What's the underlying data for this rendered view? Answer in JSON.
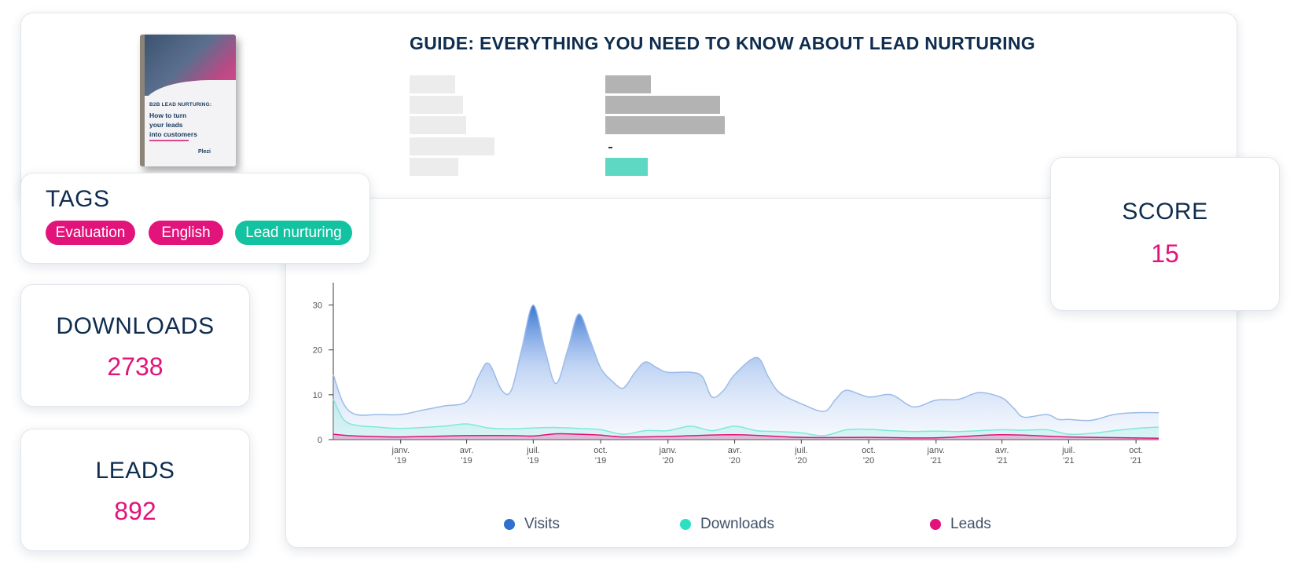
{
  "guide": {
    "title": "GUIDE: EVERYTHING YOU NEED TO KNOW ABOUT LEAD NURTURING",
    "cover": {
      "subtitle": "B2B LEAD NURTURING:",
      "title": "How to turn\nyour leads\ninto customers",
      "logo": "Plezi"
    }
  },
  "tags": {
    "title": "TAGS",
    "items": [
      {
        "label": "Evaluation",
        "color": "#e2137a"
      },
      {
        "label": "English",
        "color": "#e2137a"
      },
      {
        "label": "Lead nurturing",
        "color": "#12c2a0"
      }
    ]
  },
  "downloads": {
    "title": "DOWNLOADS",
    "value": "2738"
  },
  "leads": {
    "title": "LEADS",
    "value": "892"
  },
  "score": {
    "title": "SCORE",
    "value": "15"
  },
  "colors": {
    "accent": "#e2137a",
    "teal": "#12c2a0",
    "navy": "#0f2d4f",
    "visits": "#2f6fd0"
  },
  "chart_data": {
    "type": "area",
    "ylim": [
      0,
      35
    ],
    "y_ticks": [
      0,
      10,
      20,
      30
    ],
    "x_ticks": [
      {
        "line1": "janv.",
        "line2": "'19"
      },
      {
        "line1": "avr.",
        "line2": "'19"
      },
      {
        "line1": "juil.",
        "line2": "'19"
      },
      {
        "line1": "oct.",
        "line2": "'19"
      },
      {
        "line1": "janv.",
        "line2": "'20"
      },
      {
        "line1": "avr.",
        "line2": "'20"
      },
      {
        "line1": "juil.",
        "line2": "'20"
      },
      {
        "line1": "oct.",
        "line2": "'20"
      },
      {
        "line1": "janv.",
        "line2": "'21"
      },
      {
        "line1": "avr.",
        "line2": "'21"
      },
      {
        "line1": "juil.",
        "line2": "'21"
      },
      {
        "line1": "oct.",
        "line2": "'21"
      }
    ],
    "x_range": [
      "2018-10-06",
      "2021-11-06"
    ],
    "series": [
      {
        "name": "Visits",
        "color": "#2f6fd0",
        "points": [
          [
            "2018-10-06",
            14.5
          ],
          [
            "2018-10-20",
            8
          ],
          [
            "2018-11-06",
            5.6
          ],
          [
            "2018-12-06",
            5.6
          ],
          [
            "2019-01-06",
            5.6
          ],
          [
            "2019-02-06",
            6.6
          ],
          [
            "2019-03-06",
            7.5
          ],
          [
            "2019-04-06",
            8.5
          ],
          [
            "2019-04-22",
            14
          ],
          [
            "2019-05-06",
            17
          ],
          [
            "2019-05-24",
            11
          ],
          [
            "2019-06-06",
            11
          ],
          [
            "2019-06-20",
            20
          ],
          [
            "2019-07-06",
            30
          ],
          [
            "2019-07-22",
            20
          ],
          [
            "2019-08-06",
            12.5
          ],
          [
            "2019-08-22",
            20
          ],
          [
            "2019-09-06",
            28
          ],
          [
            "2019-09-22",
            22
          ],
          [
            "2019-10-06",
            16
          ],
          [
            "2019-10-22",
            13
          ],
          [
            "2019-11-06",
            11.5
          ],
          [
            "2019-11-22",
            15
          ],
          [
            "2019-12-06",
            17.3
          ],
          [
            "2019-12-22",
            16
          ],
          [
            "2020-01-06",
            15
          ],
          [
            "2020-02-06",
            15
          ],
          [
            "2020-02-22",
            14
          ],
          [
            "2020-03-06",
            9.5
          ],
          [
            "2020-03-22",
            11
          ],
          [
            "2020-04-06",
            14.5
          ],
          [
            "2020-05-06",
            18.3
          ],
          [
            "2020-05-22",
            14
          ],
          [
            "2020-06-06",
            10.5
          ],
          [
            "2020-07-06",
            8
          ],
          [
            "2020-08-06",
            6.3
          ],
          [
            "2020-08-22",
            9
          ],
          [
            "2020-09-06",
            11
          ],
          [
            "2020-10-06",
            9.5
          ],
          [
            "2020-11-06",
            10
          ],
          [
            "2020-12-06",
            7.3
          ],
          [
            "2021-01-06",
            8.8
          ],
          [
            "2021-02-06",
            9
          ],
          [
            "2021-03-06",
            10.5
          ],
          [
            "2021-04-06",
            9.3
          ],
          [
            "2021-04-22",
            7
          ],
          [
            "2021-05-06",
            5
          ],
          [
            "2021-06-06",
            5.6
          ],
          [
            "2021-06-22",
            4.5
          ],
          [
            "2021-07-06",
            4.5
          ],
          [
            "2021-08-06",
            4.3
          ],
          [
            "2021-09-06",
            5.6
          ],
          [
            "2021-10-06",
            6
          ],
          [
            "2021-11-06",
            6
          ]
        ]
      },
      {
        "name": "Downloads",
        "color": "#2de0c4",
        "points": [
          [
            "2018-10-06",
            9
          ],
          [
            "2018-10-20",
            4.5
          ],
          [
            "2018-11-06",
            3.2
          ],
          [
            "2018-12-06",
            2.8
          ],
          [
            "2019-01-06",
            2.5
          ],
          [
            "2019-03-06",
            3
          ],
          [
            "2019-04-06",
            3.5
          ],
          [
            "2019-05-06",
            2.6
          ],
          [
            "2019-06-06",
            2.4
          ],
          [
            "2019-07-06",
            2.6
          ],
          [
            "2019-08-06",
            2.7
          ],
          [
            "2019-09-06",
            2.5
          ],
          [
            "2019-10-06",
            2.2
          ],
          [
            "2019-11-06",
            1.2
          ],
          [
            "2019-12-06",
            2
          ],
          [
            "2020-01-06",
            2
          ],
          [
            "2020-02-06",
            3
          ],
          [
            "2020-03-06",
            2
          ],
          [
            "2020-04-06",
            3
          ],
          [
            "2020-05-06",
            2
          ],
          [
            "2020-06-06",
            1.8
          ],
          [
            "2020-07-06",
            1.5
          ],
          [
            "2020-08-06",
            0.9
          ],
          [
            "2020-09-06",
            2.2
          ],
          [
            "2020-10-06",
            2.3
          ],
          [
            "2020-11-06",
            2
          ],
          [
            "2020-12-06",
            1.8
          ],
          [
            "2021-01-06",
            1.9
          ],
          [
            "2021-02-06",
            1.8
          ],
          [
            "2021-03-06",
            2
          ],
          [
            "2021-04-06",
            2.2
          ],
          [
            "2021-05-06",
            2.1
          ],
          [
            "2021-06-06",
            2.2
          ],
          [
            "2021-07-06",
            1.2
          ],
          [
            "2021-08-06",
            1.4
          ],
          [
            "2021-09-06",
            2
          ],
          [
            "2021-10-06",
            2.5
          ],
          [
            "2021-11-06",
            2.8
          ]
        ]
      },
      {
        "name": "Leads",
        "color": "#e2137a",
        "points": [
          [
            "2018-10-06",
            1.2
          ],
          [
            "2018-11-06",
            0.8
          ],
          [
            "2019-01-06",
            0.6
          ],
          [
            "2019-04-06",
            0.9
          ],
          [
            "2019-06-06",
            0.9
          ],
          [
            "2019-07-06",
            0.8
          ],
          [
            "2019-08-06",
            1.3
          ],
          [
            "2019-09-06",
            1.2
          ],
          [
            "2019-10-06",
            1
          ],
          [
            "2019-11-06",
            0.6
          ],
          [
            "2020-01-06",
            0.7
          ],
          [
            "2020-04-06",
            1.1
          ],
          [
            "2020-07-06",
            0.5
          ],
          [
            "2020-10-06",
            0.5
          ],
          [
            "2021-01-06",
            0.4
          ],
          [
            "2021-04-06",
            1.1
          ],
          [
            "2021-07-06",
            0.6
          ],
          [
            "2021-11-06",
            0.3
          ]
        ]
      }
    ]
  }
}
